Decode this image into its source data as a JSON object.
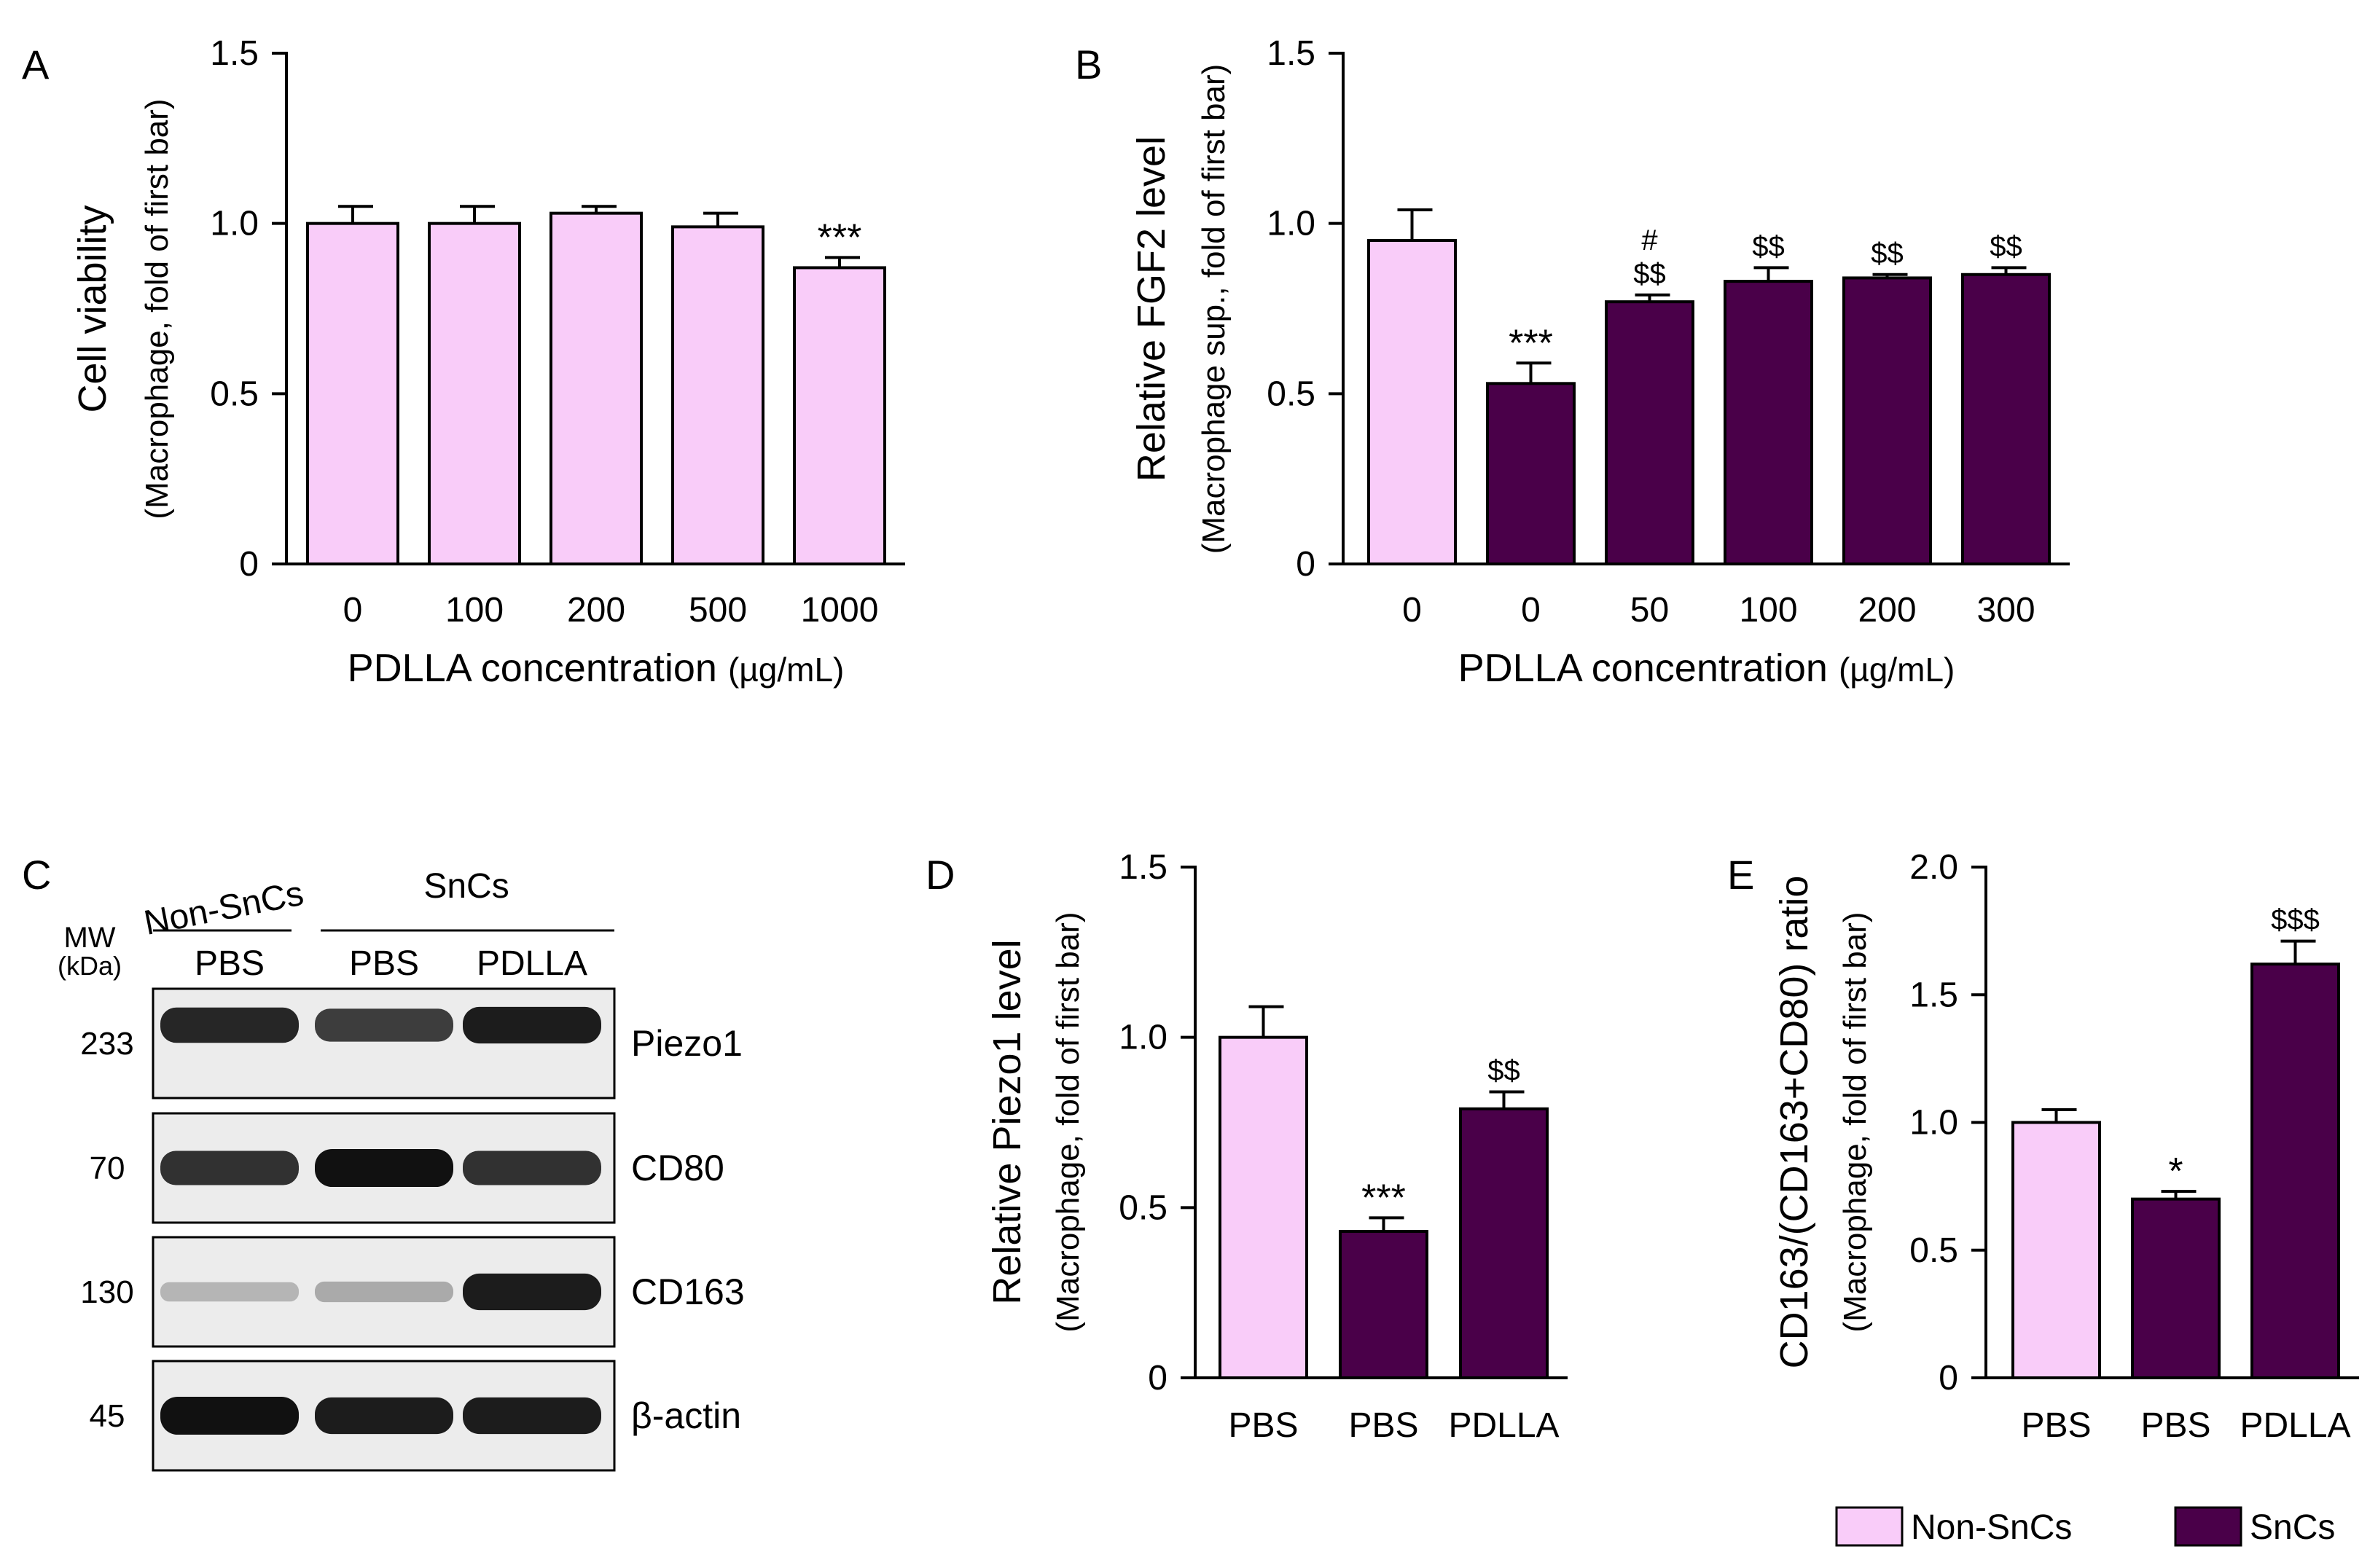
{
  "colors": {
    "non_sncs": "#F9CCF9",
    "sncs": "#4A0049",
    "axis": "#000000"
  },
  "legend": {
    "items": [
      {
        "label": "Non-SnCs",
        "color": "#F9CCF9"
      },
      {
        "label": "SnCs",
        "color": "#4A0049"
      }
    ]
  },
  "chart_data": [
    {
      "panel": "A",
      "type": "bar",
      "title": "",
      "ylabel_main": "Cell viability",
      "ylabel_sub": "(Macrophage, fold of first bar)",
      "xlabel_main": "PDLLA concentration",
      "xlabel_unit": "(µg/mL)",
      "ylim": [
        0,
        1.5
      ],
      "yticks": [
        0,
        0.5,
        1.0,
        1.5
      ],
      "ytick_labels": [
        "0",
        "0.5",
        "1.0",
        "1.5"
      ],
      "categories": [
        "0",
        "100",
        "200",
        "500",
        "1000"
      ],
      "values": [
        1.0,
        1.0,
        1.03,
        0.99,
        0.87
      ],
      "errors": [
        0.05,
        0.05,
        0.02,
        0.04,
        0.03
      ],
      "groups": [
        "non",
        "non",
        "non",
        "non",
        "non"
      ],
      "annotations": [
        "",
        "",
        "",
        "",
        "***"
      ]
    },
    {
      "panel": "B",
      "type": "bar",
      "title": "",
      "ylabel_main": "Relative FGF2 level",
      "ylabel_sub": "(Macrophage sup., fold of first bar)",
      "xlabel_main": "PDLLA concentration",
      "xlabel_unit": "(µg/mL)",
      "ylim": [
        0,
        1.5
      ],
      "yticks": [
        0,
        0.5,
        1.0,
        1.5
      ],
      "ytick_labels": [
        "0",
        "0.5",
        "1.0",
        "1.5"
      ],
      "categories": [
        "0",
        "0",
        "50",
        "100",
        "200",
        "300"
      ],
      "values": [
        0.95,
        0.53,
        0.77,
        0.83,
        0.84,
        0.85
      ],
      "errors": [
        0.09,
        0.06,
        0.02,
        0.04,
        0.01,
        0.02
      ],
      "groups": [
        "non",
        "sn",
        "sn",
        "sn",
        "sn",
        "sn"
      ],
      "annotations": [
        "",
        "***",
        "$$",
        "$$",
        "$$",
        "$$"
      ],
      "annotations_top": [
        "",
        "",
        "#",
        "",
        "",
        ""
      ]
    },
    {
      "panel": "D",
      "type": "bar",
      "title": "",
      "ylabel_main": "Relative Piezo1 level",
      "ylabel_sub": "(Macrophage, fold of first bar)",
      "ylim": [
        0,
        1.5
      ],
      "yticks": [
        0,
        0.5,
        1.0,
        1.5
      ],
      "ytick_labels": [
        "0",
        "0.5",
        "1.0",
        "1.5"
      ],
      "categories": [
        "PBS",
        "PBS",
        "PDLLA"
      ],
      "values": [
        1.0,
        0.43,
        0.79
      ],
      "errors": [
        0.09,
        0.04,
        0.05
      ],
      "groups": [
        "non",
        "sn",
        "sn"
      ],
      "annotations": [
        "",
        "***",
        "$$"
      ]
    },
    {
      "panel": "E",
      "type": "bar",
      "title": "",
      "ylabel_main": "CD163/(CD163+CD80) ratio",
      "ylabel_sub": "(Macrophage, fold of first bar)",
      "ylim": [
        0,
        2.0
      ],
      "yticks": [
        0,
        0.5,
        1.0,
        1.5,
        2.0
      ],
      "ytick_labels": [
        "0",
        "0.5",
        "1.0",
        "1.5",
        "2.0"
      ],
      "categories": [
        "PBS",
        "PBS",
        "PDLLA"
      ],
      "values": [
        1.0,
        0.7,
        1.62
      ],
      "errors": [
        0.05,
        0.03,
        0.09
      ],
      "groups": [
        "non",
        "sn",
        "sn"
      ],
      "annotations": [
        "",
        "*",
        "$$$"
      ]
    }
  ],
  "blot": {
    "panel": "C",
    "group_nonsncs": "Non-SnCs",
    "group_sncs": "SnCs",
    "mw_label": "MW",
    "kda_label": "(kDa)",
    "lanes": [
      "PBS",
      "PBS",
      "PDLLA"
    ],
    "rows": [
      {
        "mw": "233",
        "protein": "Piezo1",
        "intensity": [
          0.9,
          0.8,
          0.95
        ]
      },
      {
        "mw": "70",
        "protein": "CD80",
        "intensity": [
          0.85,
          1.0,
          0.85
        ]
      },
      {
        "mw": "130",
        "protein": "CD163",
        "intensity": [
          0.25,
          0.3,
          0.95
        ]
      },
      {
        "mw": "45",
        "protein": "β-actin",
        "intensity": [
          1.0,
          0.95,
          0.95
        ]
      }
    ]
  }
}
